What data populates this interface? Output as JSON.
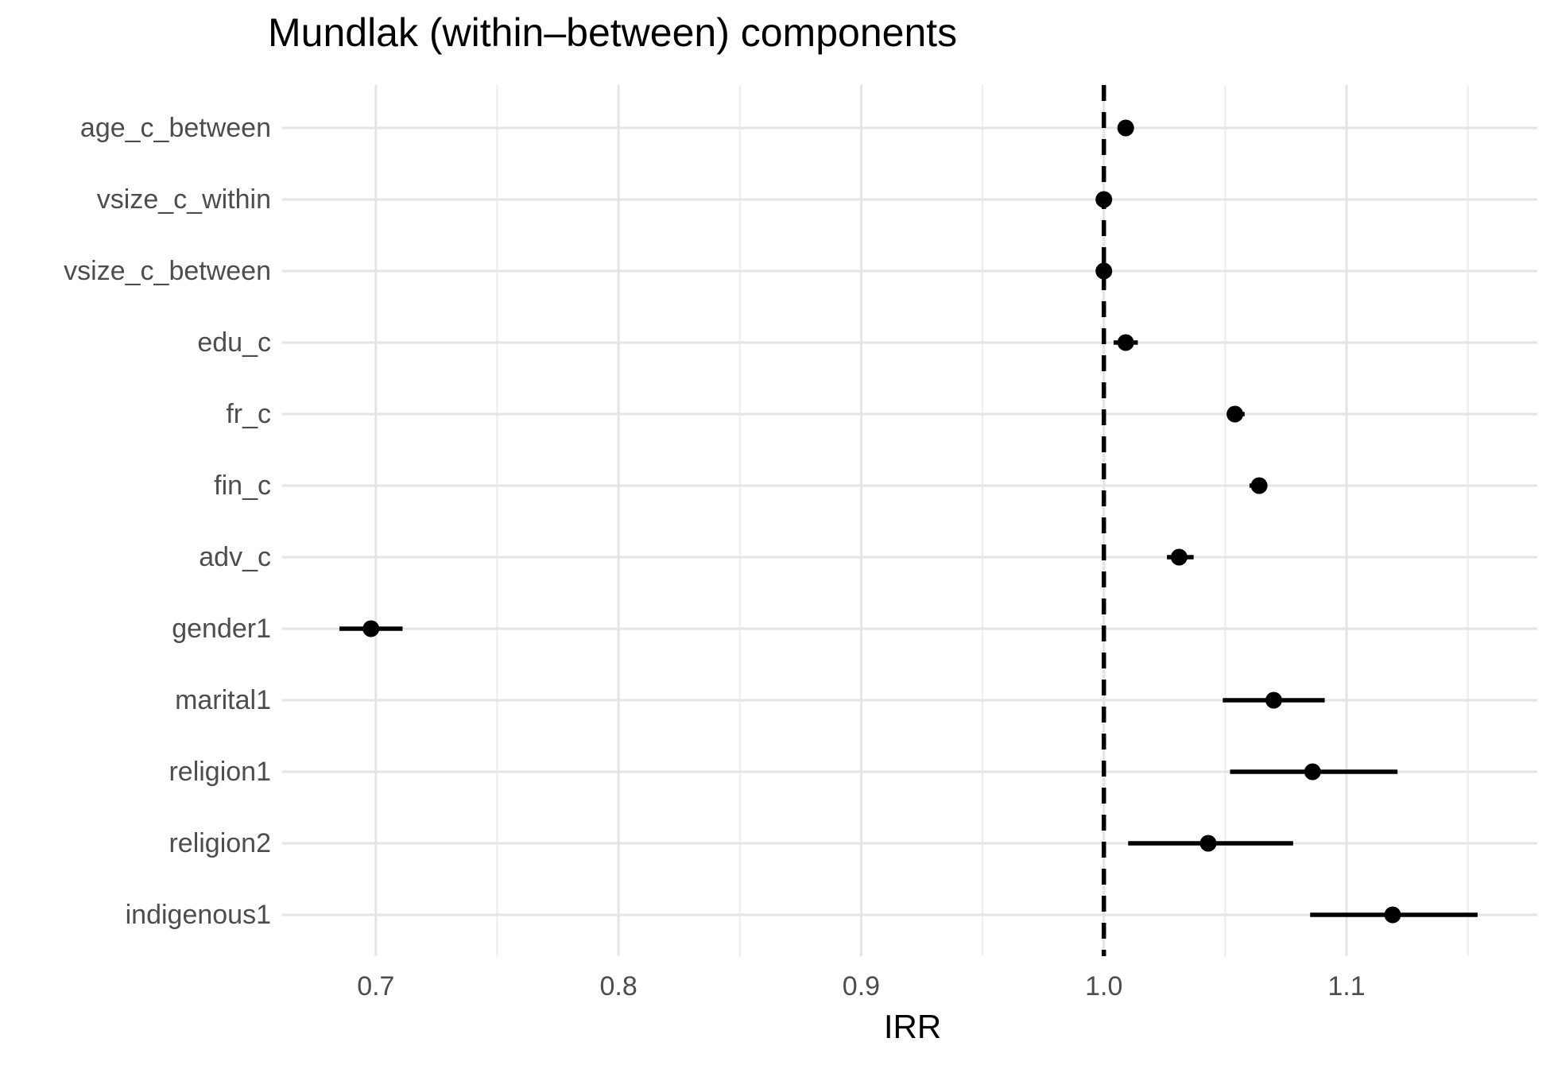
{
  "chart_data": {
    "type": "scatter",
    "subtype": "forest-plot-dot-whisker",
    "title": "Mundlak (within–between) components",
    "xlabel": "IRR",
    "ylabel": "",
    "categories": [
      "age_c_between",
      "vsize_c_within",
      "vsize_c_between",
      "edu_c",
      "fr_c",
      "fin_c",
      "adv_c",
      "gender1",
      "marital1",
      "religion1",
      "religion2",
      "indigenous1"
    ],
    "series": [
      {
        "name": "IRR estimates with confidence intervals",
        "values": [
          {
            "term": "age_c_between",
            "irr": 1.009,
            "ci_low": 1.006,
            "ci_high": 1.012
          },
          {
            "term": "vsize_c_within",
            "irr": 1.0,
            "ci_low": 0.999,
            "ci_high": 1.001
          },
          {
            "term": "vsize_c_between",
            "irr": 1.0,
            "ci_low": 0.998,
            "ci_high": 1.002
          },
          {
            "term": "edu_c",
            "irr": 1.009,
            "ci_low": 1.004,
            "ci_high": 1.014
          },
          {
            "term": "fr_c",
            "irr": 1.054,
            "ci_low": 1.051,
            "ci_high": 1.058
          },
          {
            "term": "fin_c",
            "irr": 1.064,
            "ci_low": 1.06,
            "ci_high": 1.067
          },
          {
            "term": "adv_c",
            "irr": 1.031,
            "ci_low": 1.026,
            "ci_high": 1.037
          },
          {
            "term": "gender1",
            "irr": 0.698,
            "ci_low": 0.685,
            "ci_high": 0.711
          },
          {
            "term": "marital1",
            "irr": 1.07,
            "ci_low": 1.049,
            "ci_high": 1.091
          },
          {
            "term": "religion1",
            "irr": 1.086,
            "ci_low": 1.052,
            "ci_high": 1.121
          },
          {
            "term": "religion2",
            "irr": 1.043,
            "ci_low": 1.01,
            "ci_high": 1.078
          },
          {
            "term": "indigenous1",
            "irr": 1.119,
            "ci_low": 1.085,
            "ci_high": 1.154
          }
        ]
      }
    ],
    "xlim": [
      0.6614,
      1.1786
    ],
    "x_major_ticks": [
      0.7,
      0.8,
      0.9,
      1.0,
      1.1
    ],
    "x_tick_labels": [
      "0.7",
      "0.8",
      "0.9",
      "1.0",
      "1.1"
    ],
    "x_minor_ticks": [
      0.75,
      0.85,
      0.95,
      1.05,
      1.15
    ],
    "reference_line": {
      "x": 1.0,
      "style": "dashed",
      "color": "#000000"
    },
    "grid": true,
    "legend": false,
    "colors": {
      "point": "#000000",
      "error_bar": "#000000",
      "grid_major": "#E4E4E4",
      "grid_minor": "#EFEFEF",
      "axis_text": "#4D4D4D",
      "title_text": "#000000",
      "background": "#FFFFFF"
    }
  }
}
